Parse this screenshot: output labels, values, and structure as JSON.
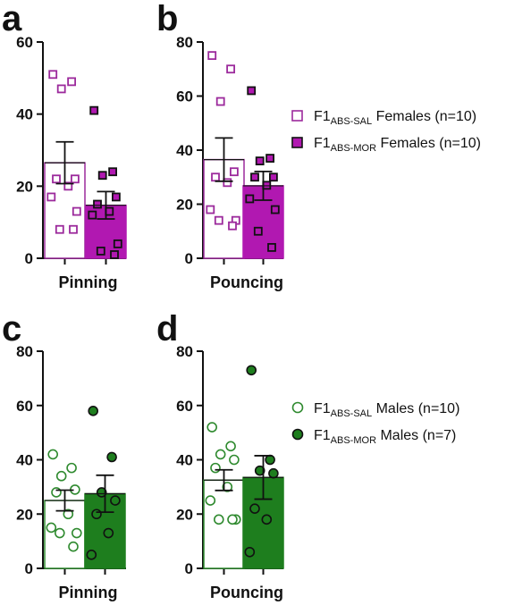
{
  "chart_data": [
    {
      "panel": "a",
      "type": "bar",
      "categories": [
        "Pinning"
      ],
      "ylim": [
        0,
        60
      ],
      "yticks": [
        0,
        20,
        40,
        60
      ],
      "marker": "square",
      "series": [
        {
          "name": "F1 ABS-SAL Females (n=10)",
          "mean": 26.5,
          "sem": 5.8,
          "fill": "#ffffff",
          "edge": "#9c2a9c",
          "points": [
            51,
            49,
            47,
            22,
            22,
            20,
            17,
            13,
            8,
            8
          ]
        },
        {
          "name": "F1 ABS-MOR Females (n=10)",
          "mean": 14.7,
          "sem": 3.8,
          "fill": "#b118b1",
          "edge": "#111111",
          "points": [
            41,
            24,
            23,
            17,
            15,
            13,
            12,
            4,
            2,
            1
          ]
        }
      ]
    },
    {
      "panel": "b",
      "type": "bar",
      "categories": [
        "Pouncing"
      ],
      "ylim": [
        0,
        80
      ],
      "yticks": [
        0,
        20,
        40,
        60,
        80
      ],
      "marker": "square",
      "series": [
        {
          "name": "F1 ABS-SAL Females (n=10)",
          "mean": 36.5,
          "sem": 8.0,
          "fill": "#ffffff",
          "edge": "#9c2a9c",
          "points": [
            75,
            70,
            58,
            32,
            30,
            28,
            18,
            14,
            14,
            12
          ]
        },
        {
          "name": "F1 ABS-MOR Females (n=10)",
          "mean": 26.8,
          "sem": 5.3,
          "fill": "#b118b1",
          "edge": "#111111",
          "points": [
            62,
            37,
            36,
            30,
            30,
            27,
            22,
            18,
            10,
            4
          ]
        }
      ]
    },
    {
      "panel": "c",
      "type": "bar",
      "categories": [
        "Pinning"
      ],
      "ylim": [
        0,
        80
      ],
      "yticks": [
        0,
        20,
        40,
        60,
        80
      ],
      "marker": "circle",
      "series": [
        {
          "name": "F1 ABS-SAL Males (n=10)",
          "mean": 25.0,
          "sem": 3.8,
          "fill": "#ffffff",
          "edge": "#2f8a2f",
          "points": [
            42,
            37,
            34,
            29,
            28,
            20,
            15,
            13,
            13,
            8
          ]
        },
        {
          "name": "F1 ABS-MOR Males (n=7)",
          "mean": 27.5,
          "sem": 6.8,
          "fill": "#1e7e1e",
          "edge": "#111111",
          "points": [
            58,
            41,
            28,
            25,
            20,
            13,
            5
          ]
        }
      ]
    },
    {
      "panel": "d",
      "type": "bar",
      "categories": [
        "Pouncing"
      ],
      "ylim": [
        0,
        80
      ],
      "yticks": [
        0,
        20,
        40,
        60,
        80
      ],
      "marker": "circle",
      "series": [
        {
          "name": "F1 ABS-SAL Males (n=10)",
          "mean": 32.5,
          "sem": 3.8,
          "fill": "#ffffff",
          "edge": "#2f8a2f",
          "points": [
            52,
            45,
            42,
            40,
            37,
            30,
            25,
            18,
            18,
            18
          ]
        },
        {
          "name": "F1 ABS-MOR Males (n=7)",
          "mean": 33.5,
          "sem": 8.0,
          "fill": "#1e7e1e",
          "edge": "#111111",
          "points": [
            73,
            40,
            36,
            35,
            22,
            18,
            6
          ]
        }
      ]
    }
  ],
  "legends": [
    {
      "marker": "square",
      "items": [
        {
          "prefix": "F1",
          "sub": "ABS-SAL",
          "suffix": " Females (n=10)",
          "fill": "#ffffff",
          "edge": "#9c2a9c"
        },
        {
          "prefix": "F1",
          "sub": "ABS-MOR",
          "suffix": " Females (n=10)",
          "fill": "#b118b1",
          "edge": "#111111"
        }
      ]
    },
    {
      "marker": "circle",
      "items": [
        {
          "prefix": "F1",
          "sub": "ABS-SAL",
          "suffix": " Males (n=10)",
          "fill": "#ffffff",
          "edge": "#2f8a2f"
        },
        {
          "prefix": "F1",
          "sub": "ABS-MOR",
          "suffix": " Males (n=7)",
          "fill": "#1e7e1e",
          "edge": "#111111"
        }
      ]
    }
  ],
  "colors": {
    "female_bar_edge": "#9c2a9c",
    "female_mor_fill": "#b118b1",
    "male_bar_edge": "#2f8a2f",
    "male_mor_fill": "#1e7e1e",
    "axis": "#111111"
  }
}
